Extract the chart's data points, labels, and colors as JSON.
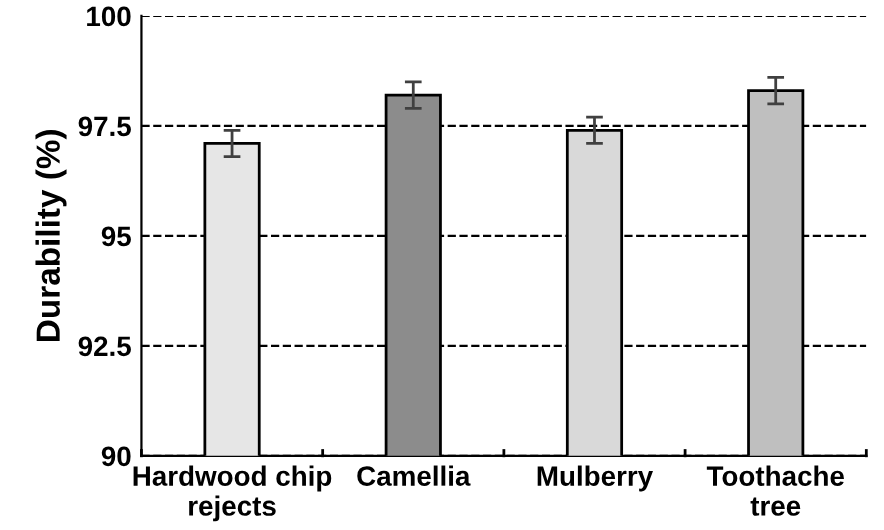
{
  "chart_data": {
    "type": "bar",
    "ylabel": "Durability (%)",
    "categories": [
      "Hardwood chip\nrejects",
      "Camellia",
      "Mulberry",
      "Toothache\ntree"
    ],
    "values": [
      97.1,
      98.2,
      97.4,
      98.3
    ],
    "errors": [
      0.3,
      0.3,
      0.3,
      0.3
    ],
    "colors": [
      "#e6e6e6",
      "#8c8c8c",
      "#d9d9d9",
      "#bfbfbf"
    ],
    "ylim": [
      90,
      100
    ],
    "yticks": [
      90,
      92.5,
      95,
      97.5,
      100
    ],
    "grid": "y",
    "line_style": "dashed"
  }
}
